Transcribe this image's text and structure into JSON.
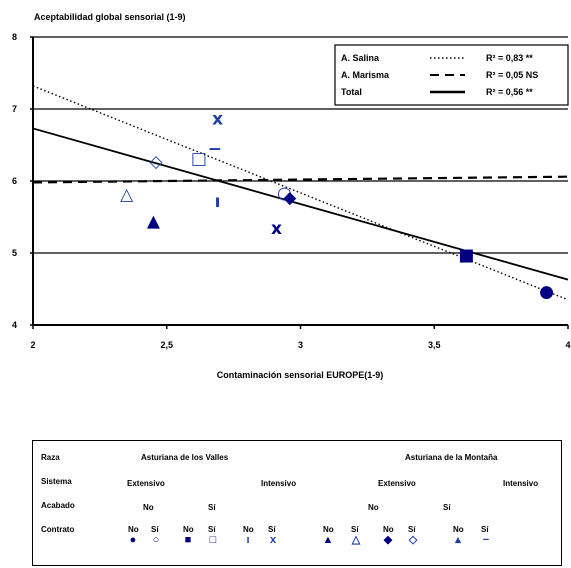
{
  "chart_data": {
    "type": "scatter",
    "title": "Aceptabilidad global sensorial (1-9)",
    "xlabel": "Contaminación sensorial EUROPE(1-9)",
    "ylabel": "",
    "xlim": [
      2,
      4
    ],
    "ylim": [
      4,
      8
    ],
    "xticks": [
      "2",
      "2,5",
      "3",
      "3,5",
      "4"
    ],
    "yticks": [
      "4",
      "5",
      "6",
      "7",
      "8"
    ],
    "grid": "horizontal",
    "legend_position": "top-right",
    "points": [
      {
        "x": 2.35,
        "y": 5.82,
        "symbol": "△",
        "color": "#1f3fa6"
      },
      {
        "x": 2.45,
        "y": 5.45,
        "symbol": "▲",
        "color": "#000080"
      },
      {
        "x": 2.46,
        "y": 6.28,
        "symbol": "◇",
        "color": "#1f3fa6"
      },
      {
        "x": 2.62,
        "y": 6.32,
        "symbol": "□",
        "color": "#1f3fa6"
      },
      {
        "x": 2.68,
        "y": 6.45,
        "symbol": "−",
        "color": "#1f3fa6"
      },
      {
        "x": 2.69,
        "y": 6.87,
        "symbol": "x",
        "color": "#1f3fa6"
      },
      {
        "x": 2.69,
        "y": 5.72,
        "symbol": "ı",
        "color": "#1f3fa6"
      },
      {
        "x": 2.91,
        "y": 5.35,
        "symbol": "x",
        "color": "#000080"
      },
      {
        "x": 2.94,
        "y": 5.84,
        "symbol": "○",
        "color": "#1f3fa6"
      },
      {
        "x": 2.96,
        "y": 5.78,
        "symbol": "◆",
        "color": "#000080"
      },
      {
        "x": 3.62,
        "y": 4.98,
        "symbol": "■",
        "color": "#000080"
      },
      {
        "x": 3.92,
        "y": 4.47,
        "symbol": "●",
        "color": "#000080"
      }
    ],
    "series": [
      {
        "name": "A. Salina",
        "style": "dotted",
        "r2": "R² = 0,83 **",
        "x": [
          2,
          4
        ],
        "y": [
          7.32,
          4.35
        ]
      },
      {
        "name": "A. Marisma",
        "style": "dashed",
        "r2": "R² = 0,05 NS",
        "x": [
          2,
          4
        ],
        "y": [
          5.98,
          6.06
        ]
      },
      {
        "name": "Total",
        "style": "solid",
        "r2": "R² = 0,56 **",
        "x": [
          2,
          4
        ],
        "y": [
          6.73,
          4.63
        ]
      }
    ]
  },
  "table": {
    "row_labels": [
      "Raza",
      "Sistema",
      "Acabado",
      "Contrato"
    ],
    "raza_values": [
      "Asturiana de los Valles",
      "Asturiana de la Montaña"
    ],
    "sistema_values": [
      "Extensivo",
      "Intensivo",
      "Extensivo",
      "Intensivo"
    ],
    "acabado_values": [
      "No",
      "Sí",
      "No",
      "Sí"
    ],
    "contrato_values": [
      "No",
      "Sí",
      "No",
      "Sí",
      "No",
      "Sí",
      "No",
      "Sí",
      "No",
      "Sí",
      "No",
      "Sí"
    ],
    "contrato_symbols": [
      "●",
      "○",
      "■",
      "□",
      "ı",
      "x",
      "▲",
      "△",
      "◆",
      "◇",
      "▴",
      "−"
    ]
  }
}
